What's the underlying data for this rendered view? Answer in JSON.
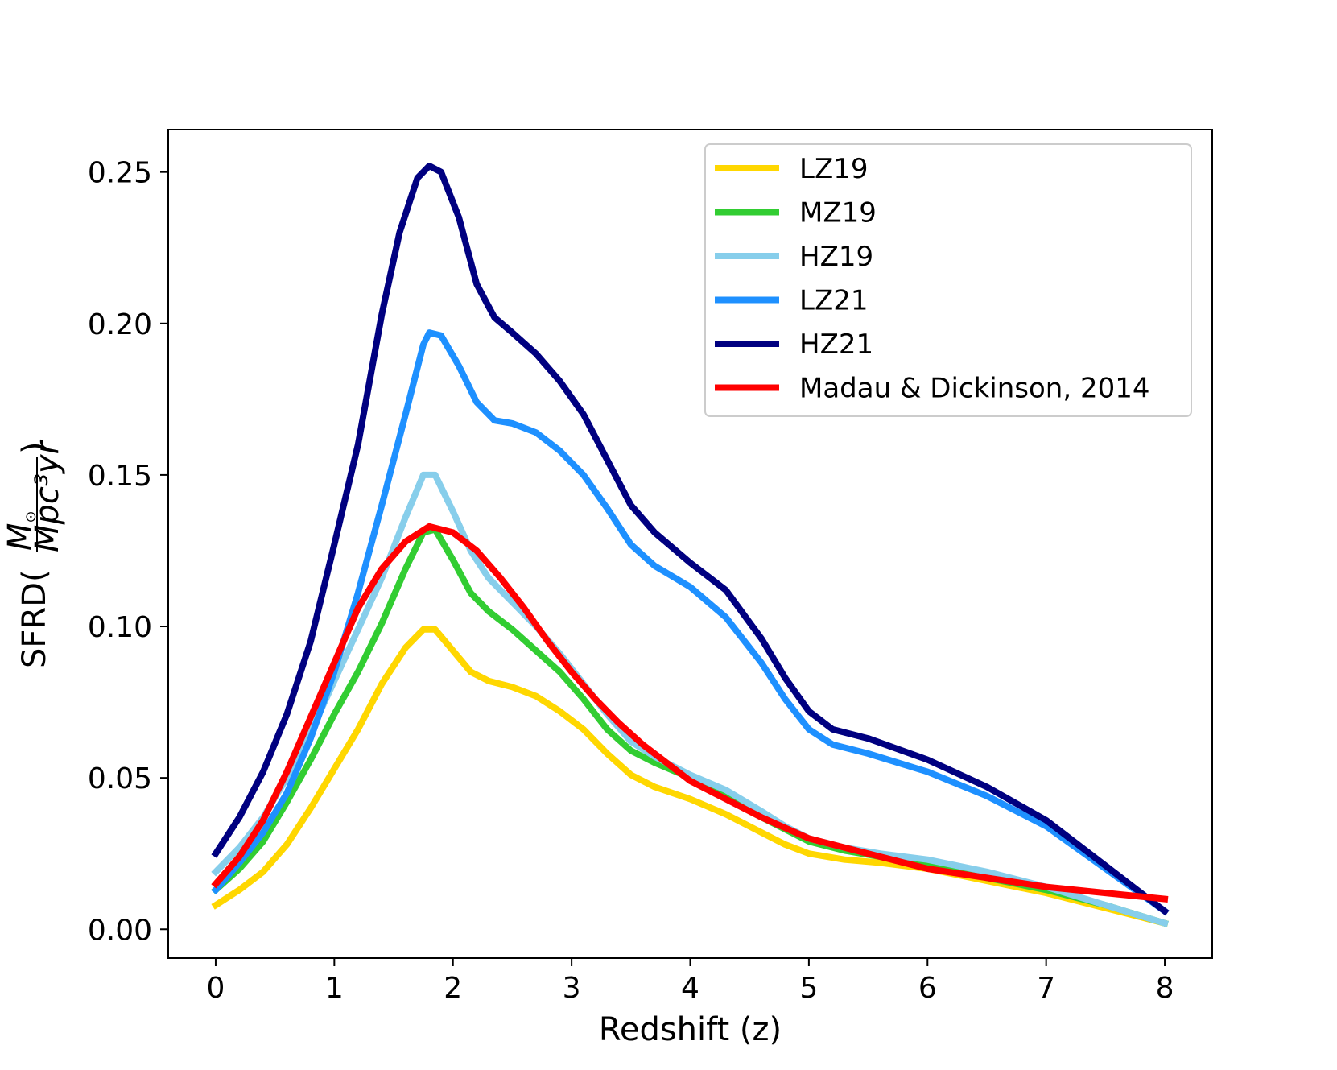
{
  "chart_data": {
    "type": "line",
    "title": "",
    "xlabel": "Redshift (z)",
    "ylabel": "SFRD(",
    "ylabel_fraction": {
      "numerator": "M",
      "numerator_subscript": "⊙",
      "denominator": "Mpc³yr"
    },
    "ylabel_close": ")",
    "xlim": [
      -0.4,
      8.4
    ],
    "ylim": [
      -0.0095,
      0.264
    ],
    "x_ticks": [
      0,
      1,
      2,
      3,
      4,
      5,
      6,
      7,
      8
    ],
    "x_tick_labels": [
      "0",
      "1",
      "2",
      "3",
      "4",
      "5",
      "6",
      "7",
      "8"
    ],
    "y_ticks": [
      0.0,
      0.05,
      0.1,
      0.15,
      0.2,
      0.25
    ],
    "y_tick_labels": [
      "0.00",
      "0.05",
      "0.10",
      "0.15",
      "0.20",
      "0.25"
    ],
    "grid": false,
    "legend_position": "top-right",
    "series": [
      {
        "name": "LZ19",
        "color": "#FFD700",
        "points": [
          [
            0,
            0.008
          ],
          [
            0.2,
            0.013
          ],
          [
            0.4,
            0.019
          ],
          [
            0.6,
            0.028
          ],
          [
            0.8,
            0.04
          ],
          [
            1.0,
            0.053
          ],
          [
            1.2,
            0.066
          ],
          [
            1.4,
            0.081
          ],
          [
            1.6,
            0.093
          ],
          [
            1.75,
            0.099
          ],
          [
            1.85,
            0.099
          ],
          [
            2.0,
            0.092
          ],
          [
            2.15,
            0.085
          ],
          [
            2.3,
            0.082
          ],
          [
            2.5,
            0.08
          ],
          [
            2.7,
            0.077
          ],
          [
            2.9,
            0.072
          ],
          [
            3.1,
            0.066
          ],
          [
            3.3,
            0.058
          ],
          [
            3.5,
            0.051
          ],
          [
            3.7,
            0.047
          ],
          [
            4.0,
            0.043
          ],
          [
            4.3,
            0.038
          ],
          [
            4.6,
            0.032
          ],
          [
            4.8,
            0.028
          ],
          [
            5.0,
            0.025
          ],
          [
            5.3,
            0.023
          ],
          [
            5.6,
            0.022
          ],
          [
            6.0,
            0.02
          ],
          [
            6.5,
            0.016
          ],
          [
            7.0,
            0.012
          ],
          [
            7.5,
            0.007
          ],
          [
            8.0,
            0.002
          ]
        ]
      },
      {
        "name": "MZ19",
        "color": "#32CD32",
        "points": [
          [
            0,
            0.013
          ],
          [
            0.2,
            0.02
          ],
          [
            0.4,
            0.029
          ],
          [
            0.6,
            0.042
          ],
          [
            0.8,
            0.056
          ],
          [
            1.0,
            0.071
          ],
          [
            1.2,
            0.085
          ],
          [
            1.4,
            0.101
          ],
          [
            1.6,
            0.119
          ],
          [
            1.75,
            0.131
          ],
          [
            1.85,
            0.132
          ],
          [
            2.0,
            0.122
          ],
          [
            2.15,
            0.111
          ],
          [
            2.3,
            0.105
          ],
          [
            2.5,
            0.099
          ],
          [
            2.7,
            0.092
          ],
          [
            2.9,
            0.085
          ],
          [
            3.1,
            0.076
          ],
          [
            3.3,
            0.066
          ],
          [
            3.5,
            0.059
          ],
          [
            3.7,
            0.055
          ],
          [
            4.0,
            0.05
          ],
          [
            4.3,
            0.044
          ],
          [
            4.6,
            0.037
          ],
          [
            4.8,
            0.033
          ],
          [
            5.0,
            0.029
          ],
          [
            5.3,
            0.026
          ],
          [
            5.6,
            0.024
          ],
          [
            6.0,
            0.021
          ],
          [
            6.5,
            0.017
          ],
          [
            7.0,
            0.013
          ],
          [
            7.5,
            0.008
          ],
          [
            8.0,
            0.002
          ]
        ]
      },
      {
        "name": "HZ19",
        "color": "#87CEEB",
        "points": [
          [
            0,
            0.019
          ],
          [
            0.2,
            0.027
          ],
          [
            0.4,
            0.037
          ],
          [
            0.6,
            0.05
          ],
          [
            0.8,
            0.065
          ],
          [
            1.0,
            0.082
          ],
          [
            1.2,
            0.099
          ],
          [
            1.4,
            0.116
          ],
          [
            1.6,
            0.136
          ],
          [
            1.75,
            0.15
          ],
          [
            1.85,
            0.15
          ],
          [
            2.0,
            0.138
          ],
          [
            2.15,
            0.125
          ],
          [
            2.3,
            0.116
          ],
          [
            2.5,
            0.108
          ],
          [
            2.7,
            0.1
          ],
          [
            2.9,
            0.091
          ],
          [
            3.1,
            0.081
          ],
          [
            3.3,
            0.071
          ],
          [
            3.5,
            0.062
          ],
          [
            3.7,
            0.057
          ],
          [
            4.0,
            0.051
          ],
          [
            4.3,
            0.046
          ],
          [
            4.6,
            0.039
          ],
          [
            4.8,
            0.034
          ],
          [
            5.0,
            0.03
          ],
          [
            5.3,
            0.027
          ],
          [
            5.6,
            0.025
          ],
          [
            6.0,
            0.023
          ],
          [
            6.5,
            0.019
          ],
          [
            7.0,
            0.014
          ],
          [
            7.5,
            0.008
          ],
          [
            8.0,
            0.002
          ]
        ]
      },
      {
        "name": "LZ21",
        "color": "#1E90FF",
        "points": [
          [
            0,
            0.013
          ],
          [
            0.2,
            0.022
          ],
          [
            0.4,
            0.032
          ],
          [
            0.6,
            0.045
          ],
          [
            0.8,
            0.063
          ],
          [
            1.0,
            0.085
          ],
          [
            1.2,
            0.111
          ],
          [
            1.4,
            0.14
          ],
          [
            1.6,
            0.17
          ],
          [
            1.75,
            0.193
          ],
          [
            1.8,
            0.197
          ],
          [
            1.9,
            0.196
          ],
          [
            2.05,
            0.186
          ],
          [
            2.2,
            0.174
          ],
          [
            2.35,
            0.168
          ],
          [
            2.5,
            0.167
          ],
          [
            2.7,
            0.164
          ],
          [
            2.9,
            0.158
          ],
          [
            3.1,
            0.15
          ],
          [
            3.3,
            0.139
          ],
          [
            3.5,
            0.127
          ],
          [
            3.7,
            0.12
          ],
          [
            4.0,
            0.113
          ],
          [
            4.3,
            0.103
          ],
          [
            4.6,
            0.088
          ],
          [
            4.8,
            0.076
          ],
          [
            5.0,
            0.066
          ],
          [
            5.2,
            0.061
          ],
          [
            5.5,
            0.058
          ],
          [
            6.0,
            0.052
          ],
          [
            6.5,
            0.044
          ],
          [
            7.0,
            0.034
          ],
          [
            7.5,
            0.02
          ],
          [
            8.0,
            0.006
          ]
        ]
      },
      {
        "name": "HZ21",
        "color": "#000080",
        "points": [
          [
            0,
            0.025
          ],
          [
            0.2,
            0.037
          ],
          [
            0.4,
            0.052
          ],
          [
            0.6,
            0.071
          ],
          [
            0.8,
            0.095
          ],
          [
            1.0,
            0.127
          ],
          [
            1.2,
            0.16
          ],
          [
            1.4,
            0.203
          ],
          [
            1.55,
            0.23
          ],
          [
            1.7,
            0.248
          ],
          [
            1.8,
            0.252
          ],
          [
            1.9,
            0.25
          ],
          [
            2.05,
            0.235
          ],
          [
            2.2,
            0.213
          ],
          [
            2.35,
            0.202
          ],
          [
            2.5,
            0.197
          ],
          [
            2.7,
            0.19
          ],
          [
            2.9,
            0.181
          ],
          [
            3.1,
            0.17
          ],
          [
            3.3,
            0.155
          ],
          [
            3.5,
            0.14
          ],
          [
            3.7,
            0.131
          ],
          [
            4.0,
            0.121
          ],
          [
            4.3,
            0.112
          ],
          [
            4.6,
            0.096
          ],
          [
            4.8,
            0.083
          ],
          [
            5.0,
            0.072
          ],
          [
            5.2,
            0.066
          ],
          [
            5.5,
            0.063
          ],
          [
            6.0,
            0.056
          ],
          [
            6.5,
            0.047
          ],
          [
            7.0,
            0.036
          ],
          [
            7.5,
            0.021
          ],
          [
            8.0,
            0.006
          ]
        ]
      },
      {
        "name": "Madau & Dickinson, 2014",
        "color": "#FF0000",
        "points": [
          [
            0,
            0.015
          ],
          [
            0.2,
            0.024
          ],
          [
            0.4,
            0.036
          ],
          [
            0.6,
            0.052
          ],
          [
            0.8,
            0.07
          ],
          [
            1.0,
            0.088
          ],
          [
            1.2,
            0.106
          ],
          [
            1.4,
            0.119
          ],
          [
            1.6,
            0.128
          ],
          [
            1.8,
            0.133
          ],
          [
            2.0,
            0.131
          ],
          [
            2.2,
            0.125
          ],
          [
            2.4,
            0.116
          ],
          [
            2.6,
            0.106
          ],
          [
            2.8,
            0.095
          ],
          [
            3.0,
            0.085
          ],
          [
            3.2,
            0.076
          ],
          [
            3.4,
            0.068
          ],
          [
            3.6,
            0.061
          ],
          [
            3.8,
            0.055
          ],
          [
            4.0,
            0.049
          ],
          [
            4.3,
            0.043
          ],
          [
            4.6,
            0.037
          ],
          [
            5.0,
            0.03
          ],
          [
            5.5,
            0.025
          ],
          [
            6.0,
            0.02
          ],
          [
            6.5,
            0.017
          ],
          [
            7.0,
            0.014
          ],
          [
            7.5,
            0.012
          ],
          [
            8.0,
            0.01
          ]
        ]
      }
    ]
  }
}
